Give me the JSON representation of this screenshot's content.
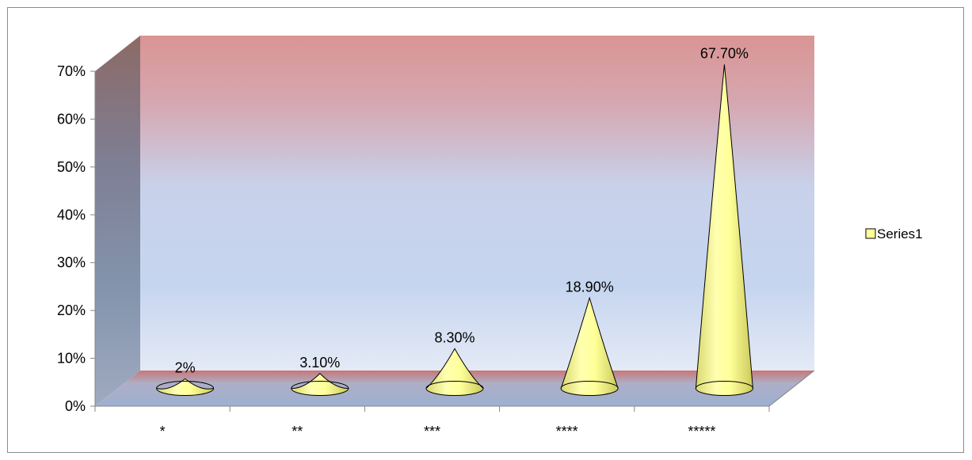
{
  "chart_data": {
    "type": "bar",
    "style": "3d-cone",
    "categories": [
      "*",
      "**",
      "***",
      "****",
      "*****"
    ],
    "series": [
      {
        "name": "Series1",
        "values": [
          2,
          3.1,
          8.3,
          18.9,
          67.7
        ],
        "data_labels": [
          "2%",
          "3.10%",
          "8.30%",
          "18.90%",
          "67.70%"
        ]
      }
    ],
    "ylim": [
      0,
      70
    ],
    "yticks": [
      "0%",
      "10%",
      "20%",
      "30%",
      "40%",
      "50%",
      "60%",
      "70%"
    ],
    "ytick_values": [
      0,
      10,
      20,
      30,
      40,
      50,
      60,
      70
    ],
    "legend": "right",
    "grid": false,
    "colors": {
      "cone": "#ffff99",
      "cone_dark": "#d9d96a",
      "back_wall_top": "#d99594",
      "back_wall_bottom": "#dbe5f1",
      "side_wall": "#7f8fa9",
      "floor": "#9fb0cf"
    }
  }
}
